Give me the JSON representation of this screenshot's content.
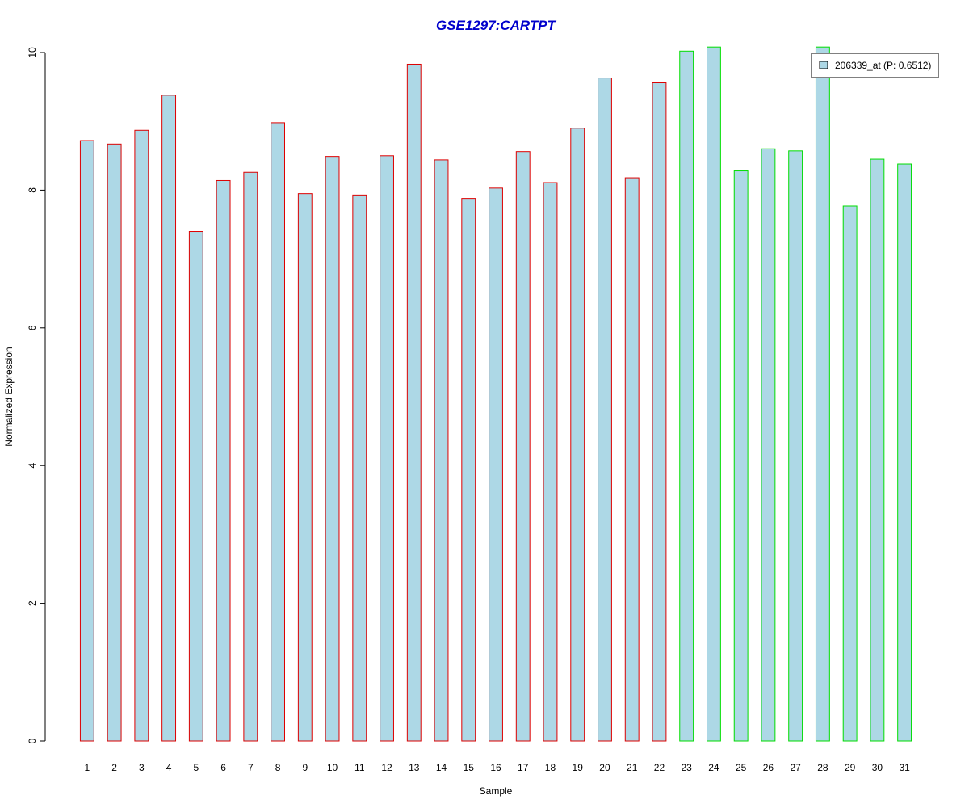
{
  "chart_data": {
    "type": "bar",
    "title": "GSE1297:CARTPT",
    "xlabel": "Sample",
    "ylabel": "Normalized Expression",
    "categories": [
      "1",
      "2",
      "3",
      "4",
      "5",
      "6",
      "7",
      "8",
      "9",
      "10",
      "11",
      "12",
      "13",
      "14",
      "15",
      "16",
      "17",
      "18",
      "19",
      "20",
      "21",
      "22",
      "23",
      "24",
      "25",
      "26",
      "27",
      "28",
      "29",
      "30",
      "31"
    ],
    "series": [
      {
        "name": "206339_at (P: 0.6512)",
        "values": [
          8.72,
          8.67,
          8.87,
          9.38,
          7.4,
          8.14,
          8.26,
          8.98,
          7.95,
          8.49,
          7.93,
          8.5,
          9.83,
          8.44,
          7.88,
          8.03,
          8.56,
          8.11,
          8.9,
          9.63,
          8.18,
          9.56,
          10.02,
          10.08,
          8.28,
          8.6,
          8.57,
          10.08,
          7.77,
          8.45,
          8.38
        ]
      }
    ],
    "groups": [
      {
        "samples": "1-22",
        "border_color": "#dd0000"
      },
      {
        "samples": "23-31",
        "border_color": "#00dd00"
      }
    ],
    "bar_fill": "#add8e6",
    "title_color": "#0000cc",
    "ylim": [
      0,
      10
    ],
    "yticks": [
      0,
      2,
      4,
      6,
      8,
      10
    ],
    "grid": false,
    "legend_position": "top-right"
  }
}
